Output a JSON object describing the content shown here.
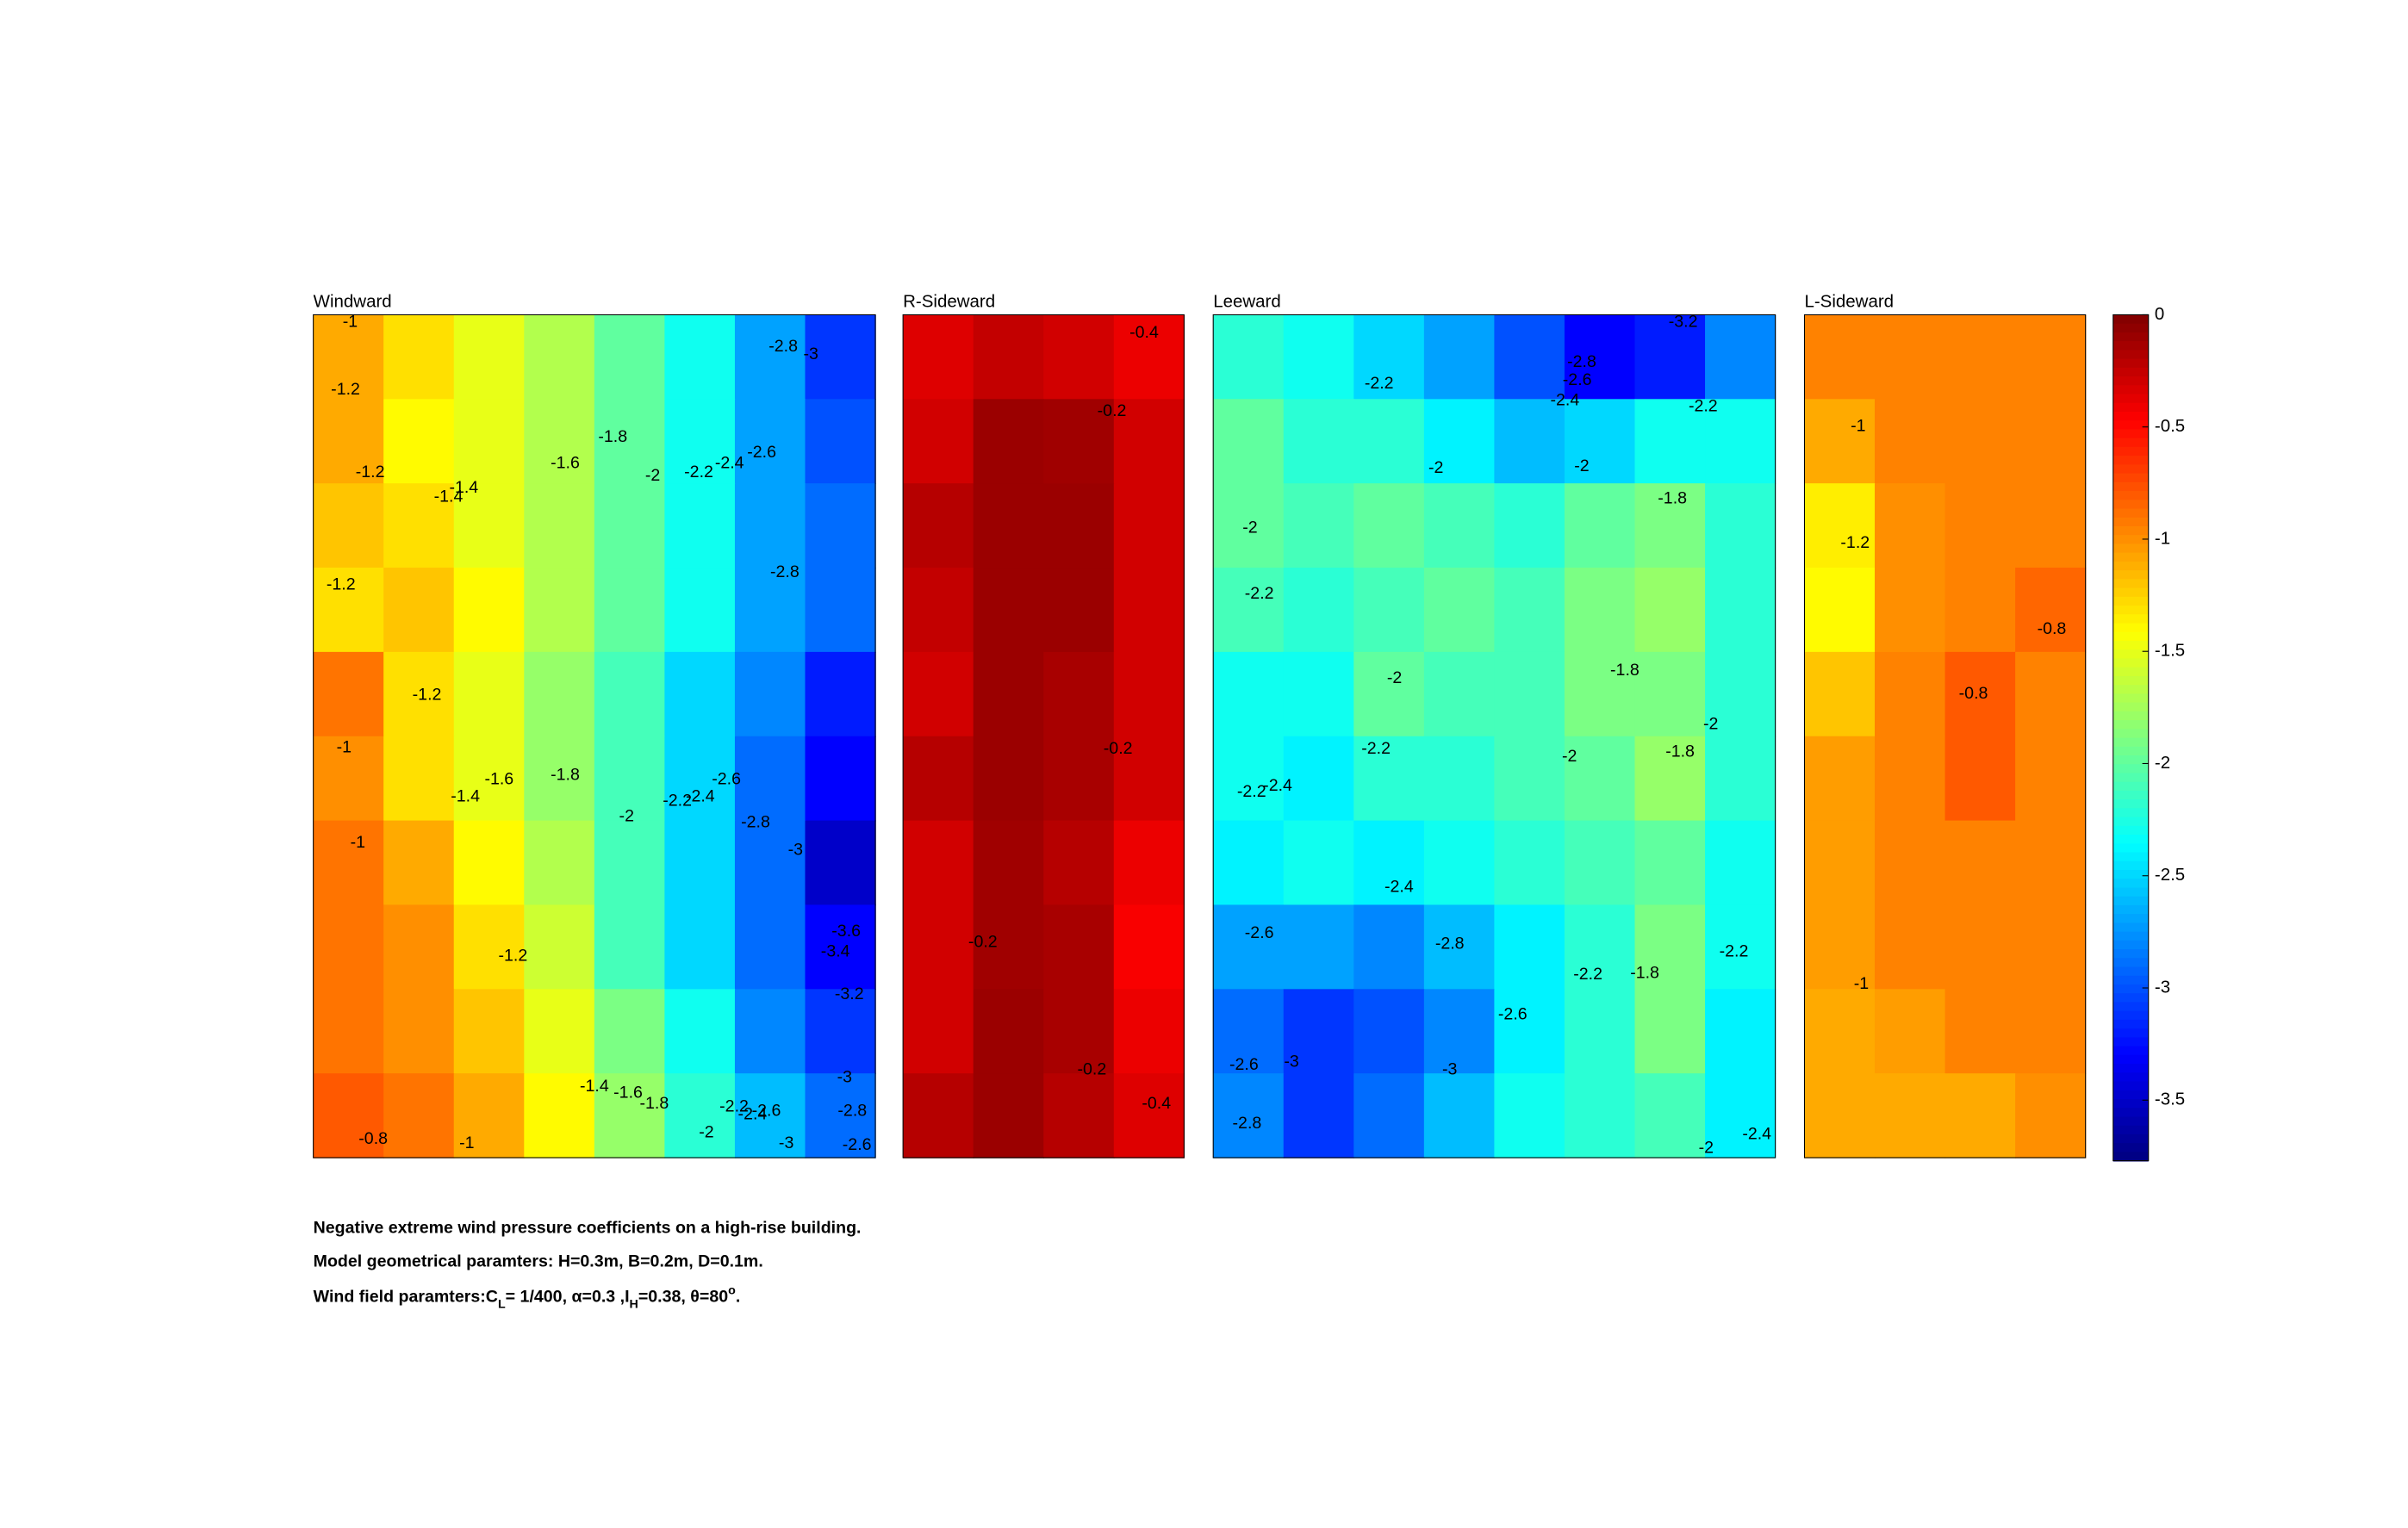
{
  "chart_data": {
    "type": "contour",
    "clim": [
      -3.77,
      0
    ],
    "colormap": "jet",
    "panels": [
      {
        "title": "Windward",
        "grid": [
          [
            -1.1,
            -1.3,
            -1.5,
            -1.7,
            -2.0,
            -2.3,
            -2.7,
            -3.1
          ],
          [
            -1.1,
            -1.4,
            -1.5,
            -1.7,
            -2.0,
            -2.3,
            -2.7,
            -3.0
          ],
          [
            -1.2,
            -1.3,
            -1.5,
            -1.7,
            -2.0,
            -2.3,
            -2.7,
            -2.9
          ],
          [
            -1.3,
            -1.2,
            -1.4,
            -1.7,
            -2.0,
            -2.3,
            -2.7,
            -2.9
          ],
          [
            -0.9,
            -1.3,
            -1.5,
            -1.8,
            -2.1,
            -2.5,
            -2.8,
            -3.2
          ],
          [
            -1.0,
            -1.3,
            -1.5,
            -1.8,
            -2.1,
            -2.5,
            -2.9,
            -3.3
          ],
          [
            -0.9,
            -1.1,
            -1.4,
            -1.7,
            -2.1,
            -2.5,
            -2.9,
            -3.5
          ],
          [
            -0.9,
            -1.0,
            -1.3,
            -1.6,
            -2.1,
            -2.5,
            -2.9,
            -3.3
          ],
          [
            -0.9,
            -1.0,
            -1.2,
            -1.5,
            -1.9,
            -2.3,
            -2.8,
            -3.1
          ],
          [
            -0.8,
            -0.9,
            -1.1,
            -1.4,
            -1.8,
            -2.2,
            -2.6,
            -2.9
          ]
        ],
        "contour_labels": [
          -1,
          -1.2,
          -1.2,
          -1.4,
          -1.4,
          -1.6,
          -1.8,
          -2,
          -2.2,
          -2.4,
          -2.6,
          -2.8,
          -3,
          -2.8,
          -1.2,
          -1.2,
          -1,
          -1.4,
          -1.6,
          -1.8,
          -2,
          -2.2,
          -2.4,
          -2.6,
          -2.8,
          -3,
          -3.6,
          -3.4,
          -3.2,
          -1,
          -1.2,
          -1.4,
          -1.6,
          -1.8,
          -2.2,
          -2.4,
          -2.6,
          -2,
          -3,
          -2.8,
          -2.6,
          -3,
          -0.8,
          -1
        ]
      },
      {
        "title": "R-Sideward",
        "grid": [
          [
            -0.35,
            -0.25,
            -0.3,
            -0.4
          ],
          [
            -0.3,
            -0.1,
            -0.12,
            -0.3
          ],
          [
            -0.2,
            -0.1,
            -0.1,
            -0.3
          ],
          [
            -0.25,
            -0.1,
            -0.1,
            -0.3
          ],
          [
            -0.3,
            -0.1,
            -0.15,
            -0.3
          ],
          [
            -0.2,
            -0.1,
            -0.15,
            -0.3
          ],
          [
            -0.3,
            -0.12,
            -0.2,
            -0.4
          ],
          [
            -0.3,
            -0.12,
            -0.15,
            -0.45
          ],
          [
            -0.3,
            -0.1,
            -0.15,
            -0.4
          ],
          [
            -0.2,
            -0.1,
            -0.2,
            -0.35
          ]
        ],
        "contour_labels": [
          -0.4,
          -0.2,
          -0.2,
          -0.2,
          -0.2,
          -0.4
        ]
      },
      {
        "title": "Leeward",
        "grid": [
          [
            -2.2,
            -2.3,
            -2.5,
            -2.7,
            -3.0,
            -3.3,
            -3.2,
            -2.8
          ],
          [
            -2.0,
            -2.2,
            -2.2,
            -2.4,
            -2.6,
            -2.5,
            -2.3,
            -2.3
          ],
          [
            -2.0,
            -2.1,
            -2.0,
            -2.1,
            -2.2,
            -2.0,
            -1.9,
            -2.2
          ],
          [
            -2.1,
            -2.2,
            -2.1,
            -2.0,
            -2.1,
            -1.9,
            -1.8,
            -2.2
          ],
          [
            -2.3,
            -2.3,
            -2.0,
            -2.1,
            -2.1,
            -1.9,
            -1.9,
            -2.2
          ],
          [
            -2.3,
            -2.4,
            -2.2,
            -2.2,
            -2.1,
            -2.0,
            -1.8,
            -2.2
          ],
          [
            -2.4,
            -2.3,
            -2.4,
            -2.3,
            -2.2,
            -2.1,
            -2.0,
            -2.3
          ],
          [
            -2.7,
            -2.7,
            -2.8,
            -2.6,
            -2.4,
            -2.2,
            -1.9,
            -2.3
          ],
          [
            -2.9,
            -3.1,
            -3.0,
            -2.8,
            -2.4,
            -2.2,
            -1.9,
            -2.4
          ],
          [
            -2.8,
            -3.1,
            -2.9,
            -2.6,
            -2.3,
            -2.2,
            -2.1,
            -2.4
          ]
        ],
        "contour_labels": [
          -3.2,
          -2.8,
          -2.6,
          -2.4,
          -2.2,
          -2.2,
          -2,
          -2,
          -1.8,
          -2,
          -2.2,
          -2,
          -1.8,
          -2,
          -2.2,
          -2,
          -1.8,
          -2.2,
          -2.4,
          -2.4,
          -2.6,
          -2.8,
          -2.6,
          -2.2,
          -1.8,
          -2.2,
          -2.6,
          -3,
          -3,
          -2.8,
          -2,
          -2.4
        ]
      },
      {
        "title": "L-Sideward",
        "grid": [
          [
            -0.95,
            -0.95,
            -0.95,
            -0.95
          ],
          [
            -1.1,
            -0.95,
            -0.95,
            -0.95
          ],
          [
            -1.35,
            -1.0,
            -0.95,
            -0.95
          ],
          [
            -1.4,
            -1.0,
            -0.95,
            -0.85
          ],
          [
            -1.2,
            -0.95,
            -0.8,
            -0.95
          ],
          [
            -1.05,
            -0.95,
            -0.8,
            -0.95
          ],
          [
            -1.05,
            -0.95,
            -0.95,
            -0.95
          ],
          [
            -1.05,
            -0.95,
            -0.95,
            -0.95
          ],
          [
            -1.1,
            -1.05,
            -0.95,
            -0.95
          ],
          [
            -1.1,
            -1.1,
            -1.1,
            -1.0
          ]
        ],
        "contour_labels": [
          -1,
          -1.2,
          -0.8,
          -0.8,
          -1
        ]
      }
    ],
    "colorbar_ticks": [
      0,
      -0.5,
      -1,
      -1.5,
      -2,
      -2.5,
      -3,
      -3.5
    ],
    "caption": [
      "Negative extreme wind pressure coefficients on a high-rise building.",
      "Model geometrical paramters: H=0.3m, B=0.2m, D=0.1m."
    ],
    "caption_line3": [
      "Wind field paramters:C",
      "L",
      "= 1/400, α=0.3 ,I",
      "H",
      "=0.38, θ=80",
      "o",
      "."
    ]
  }
}
